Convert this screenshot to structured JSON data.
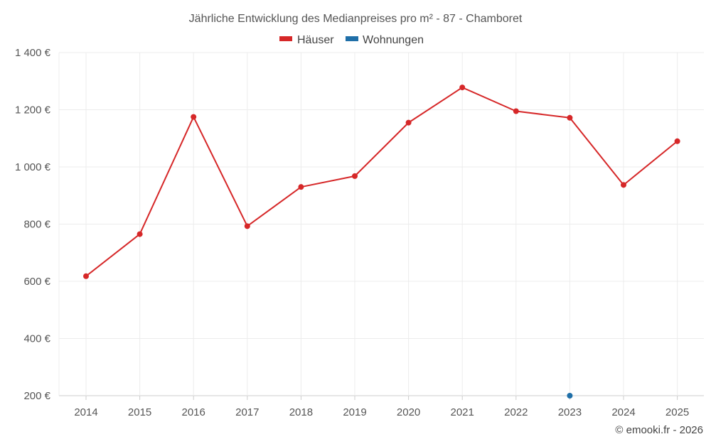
{
  "chart_data": {
    "type": "line",
    "title": "Jährliche Entwicklung des Medianpreises pro m² - 87 - Chamboret",
    "x": [
      "2014",
      "2015",
      "2016",
      "2017",
      "2018",
      "2019",
      "2020",
      "2021",
      "2022",
      "2023",
      "2024",
      "2025"
    ],
    "y_ticks": [
      "200 €",
      "400 €",
      "600 €",
      "800 €",
      "1 000 €",
      "1 200 €",
      "1 400 €"
    ],
    "ylim": [
      200,
      1400
    ],
    "grid": true,
    "legend_position": "top",
    "series": [
      {
        "name": "Häuser",
        "color": "#d62728",
        "values": [
          618,
          765,
          1175,
          793,
          930,
          968,
          1155,
          1278,
          1195,
          1172,
          937,
          1090
        ]
      },
      {
        "name": "Wohnungen",
        "color": "#1f6fa8",
        "values": [
          null,
          null,
          null,
          null,
          null,
          null,
          null,
          null,
          null,
          200,
          null,
          null
        ]
      }
    ]
  },
  "credit": "© emooki.fr - 2026"
}
